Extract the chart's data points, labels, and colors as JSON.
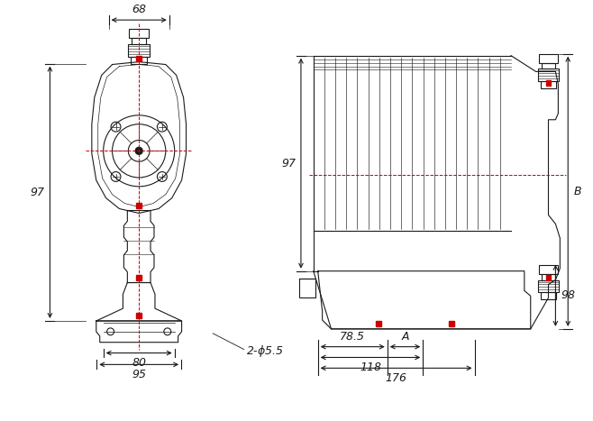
{
  "bg_color": "#ffffff",
  "line_color": "#1a1a1a",
  "red_color": "#cc0000",
  "font_size": 9,
  "dimensions": {
    "top_width": "68",
    "mid_width": "80",
    "bot_width": "95",
    "left_height": "97",
    "hole_note": "2-φ5.5",
    "depth_785": "78.5",
    "depth_A": "A",
    "depth_118": "118",
    "depth_176": "176",
    "height_B": "B",
    "height_98": "98"
  }
}
